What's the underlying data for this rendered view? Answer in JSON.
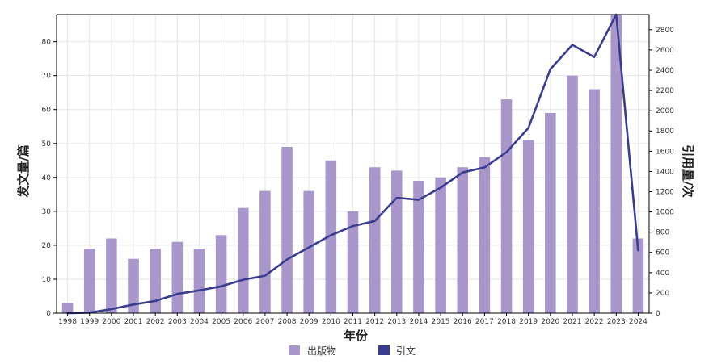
{
  "chart_data": {
    "type": "bar+line",
    "xlabel": "年份",
    "ylabel_left": "发文量/篇",
    "ylabel_right": "引用量/次",
    "categories": [
      "1998",
      "1999",
      "2000",
      "2001",
      "2002",
      "2003",
      "2004",
      "2005",
      "2006",
      "2007",
      "2008",
      "2009",
      "2010",
      "2011",
      "2012",
      "2013",
      "2014",
      "2015",
      "2016",
      "2017",
      "2018",
      "2019",
      "2020",
      "2021",
      "2022",
      "2023",
      "2024"
    ],
    "series": [
      {
        "name": "出版物",
        "type": "bar",
        "axis": "left",
        "values": [
          3,
          19,
          22,
          16,
          19,
          21,
          19,
          23,
          31,
          36,
          49,
          36,
          45,
          30,
          43,
          42,
          39,
          40,
          43,
          46,
          63,
          51,
          59,
          70,
          66,
          88,
          22
        ]
      },
      {
        "name": "引文",
        "type": "line",
        "axis": "right",
        "values": [
          0,
          5,
          40,
          85,
          120,
          190,
          225,
          265,
          330,
          370,
          530,
          650,
          770,
          860,
          910,
          1140,
          1120,
          1240,
          1390,
          1440,
          1590,
          1830,
          2410,
          2650,
          2530,
          2950,
          620
        ]
      }
    ],
    "ylim_left": [
      0,
      88
    ],
    "yticks_left": [
      0,
      10,
      20,
      30,
      40,
      50,
      60,
      70,
      80
    ],
    "ylim_right": [
      0,
      2950
    ],
    "yticks_right": [
      0,
      200,
      400,
      600,
      800,
      1000,
      1200,
      1400,
      1600,
      1800,
      2000,
      2200,
      2400,
      2600,
      2800
    ],
    "grid": true,
    "legend": {
      "position": "bottom-center",
      "entries": [
        "出版物",
        "引文"
      ]
    },
    "colors": {
      "bar": "#a996cb",
      "line": "#3a3d8f",
      "grid": "#e6e6e6",
      "axis": "#000000"
    }
  }
}
